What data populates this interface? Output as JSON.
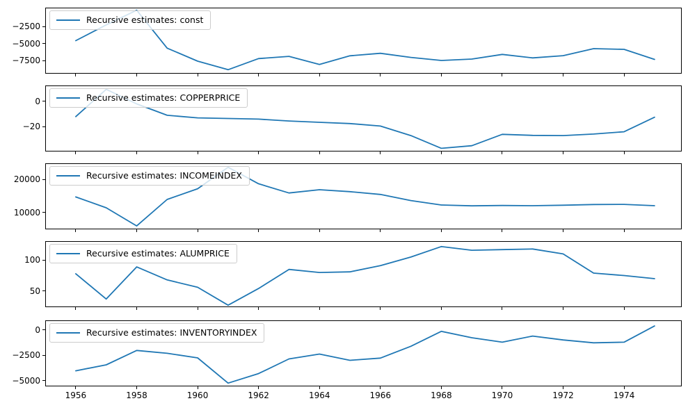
{
  "figure": {
    "background": "#ffffff",
    "line_color": "#1f77b4",
    "spine_color": "#000000",
    "legend_bg": "rgba(255,255,255,0.8)",
    "legend_border": "#cccccc"
  },
  "axis": {
    "xlim": [
      1955.02,
      1975.87
    ],
    "xticks": [
      1956,
      1958,
      1960,
      1962,
      1964,
      1966,
      1968,
      1970,
      1972,
      1974
    ],
    "xtick_labels": [
      "1956",
      "1958",
      "1960",
      "1962",
      "1964",
      "1966",
      "1968",
      "1970",
      "1972",
      "1974"
    ]
  },
  "chart_data": [
    {
      "type": "line",
      "legend": "Recursive estimates: const",
      "x": [
        1956,
        1957,
        1958,
        1959,
        1960,
        1961,
        1962,
        1963,
        1964,
        1965,
        1966,
        1967,
        1968,
        1969,
        1970,
        1971,
        1972,
        1973,
        1974,
        1975
      ],
      "values": [
        -4550,
        -2250,
        -100,
        -5650,
        -7550,
        -8800,
        -7180,
        -6850,
        -8030,
        -6770,
        -6400,
        -7000,
        -7450,
        -7250,
        -6570,
        -7080,
        -6745,
        -5725,
        -5830,
        -7300
      ],
      "ylim": [
        -9280,
        170
      ],
      "yticks": [
        -2500,
        -5000,
        -7500
      ],
      "ytick_labels": [
        "−2500",
        "−5000",
        "−7500"
      ]
    },
    {
      "type": "line",
      "legend": "Recursive estimates: COPPERPRICE",
      "x": [
        1956,
        1957,
        1958,
        1959,
        1960,
        1961,
        1962,
        1963,
        1964,
        1965,
        1966,
        1967,
        1968,
        1969,
        1970,
        1971,
        1972,
        1973,
        1974,
        1975
      ],
      "values": [
        -12,
        9.5,
        -2,
        -11,
        -13,
        -13.5,
        -14,
        -15.5,
        -16.5,
        -17.5,
        -19.5,
        -27,
        -37,
        -35,
        -26,
        -26.8,
        -27,
        -25.8,
        -24,
        -12.5
      ],
      "ylim": [
        -39,
        12
      ],
      "yticks": [
        0,
        -20
      ],
      "ytick_labels": [
        "0",
        "−20"
      ]
    },
    {
      "type": "line",
      "legend": "Recursive estimates: INCOMEINDEX",
      "x": [
        1956,
        1957,
        1958,
        1959,
        1960,
        1961,
        1962,
        1963,
        1964,
        1965,
        1966,
        1967,
        1968,
        1969,
        1970,
        1971,
        1972,
        1973,
        1974,
        1975
      ],
      "values": [
        14700,
        11400,
        5900,
        13950,
        17200,
        23700,
        18700,
        15900,
        16900,
        16300,
        15450,
        13600,
        12250,
        12000,
        12100,
        12050,
        12200,
        12400,
        12450,
        12050
      ],
      "ylim": [
        5080,
        24700
      ],
      "yticks": [
        20000,
        10000
      ],
      "ytick_labels": [
        "20000",
        "10000"
      ]
    },
    {
      "type": "line",
      "legend": "Recursive estimates: ALUMPRICE",
      "x": [
        1956,
        1957,
        1958,
        1959,
        1960,
        1961,
        1962,
        1963,
        1964,
        1965,
        1966,
        1967,
        1968,
        1969,
        1970,
        1971,
        1972,
        1973,
        1974,
        1975
      ],
      "values": [
        78,
        37,
        89,
        68,
        56,
        27,
        54,
        85,
        80,
        81,
        91,
        105,
        122,
        116,
        117,
        118,
        110,
        79,
        75,
        70
      ],
      "ylim": [
        25,
        129.6
      ],
      "yticks": [
        100,
        50
      ],
      "ytick_labels": [
        "100",
        "50"
      ]
    },
    {
      "type": "line",
      "legend": "Recursive estimates: INVENTORYINDEX",
      "x": [
        1956,
        1957,
        1958,
        1959,
        1960,
        1961,
        1962,
        1963,
        1964,
        1965,
        1966,
        1967,
        1968,
        1969,
        1970,
        1971,
        1972,
        1973,
        1974,
        1975
      ],
      "values": [
        -4030,
        -3440,
        -2030,
        -2310,
        -2760,
        -5240,
        -4300,
        -2860,
        -2380,
        -3000,
        -2780,
        -1620,
        -150,
        -780,
        -1215,
        -615,
        -1000,
        -1280,
        -1215,
        375
      ],
      "ylim": [
        -5490,
        860
      ],
      "yticks": [
        0,
        -2500,
        -5000
      ],
      "ytick_labels": [
        "0",
        "−2500",
        "−5000"
      ]
    }
  ]
}
